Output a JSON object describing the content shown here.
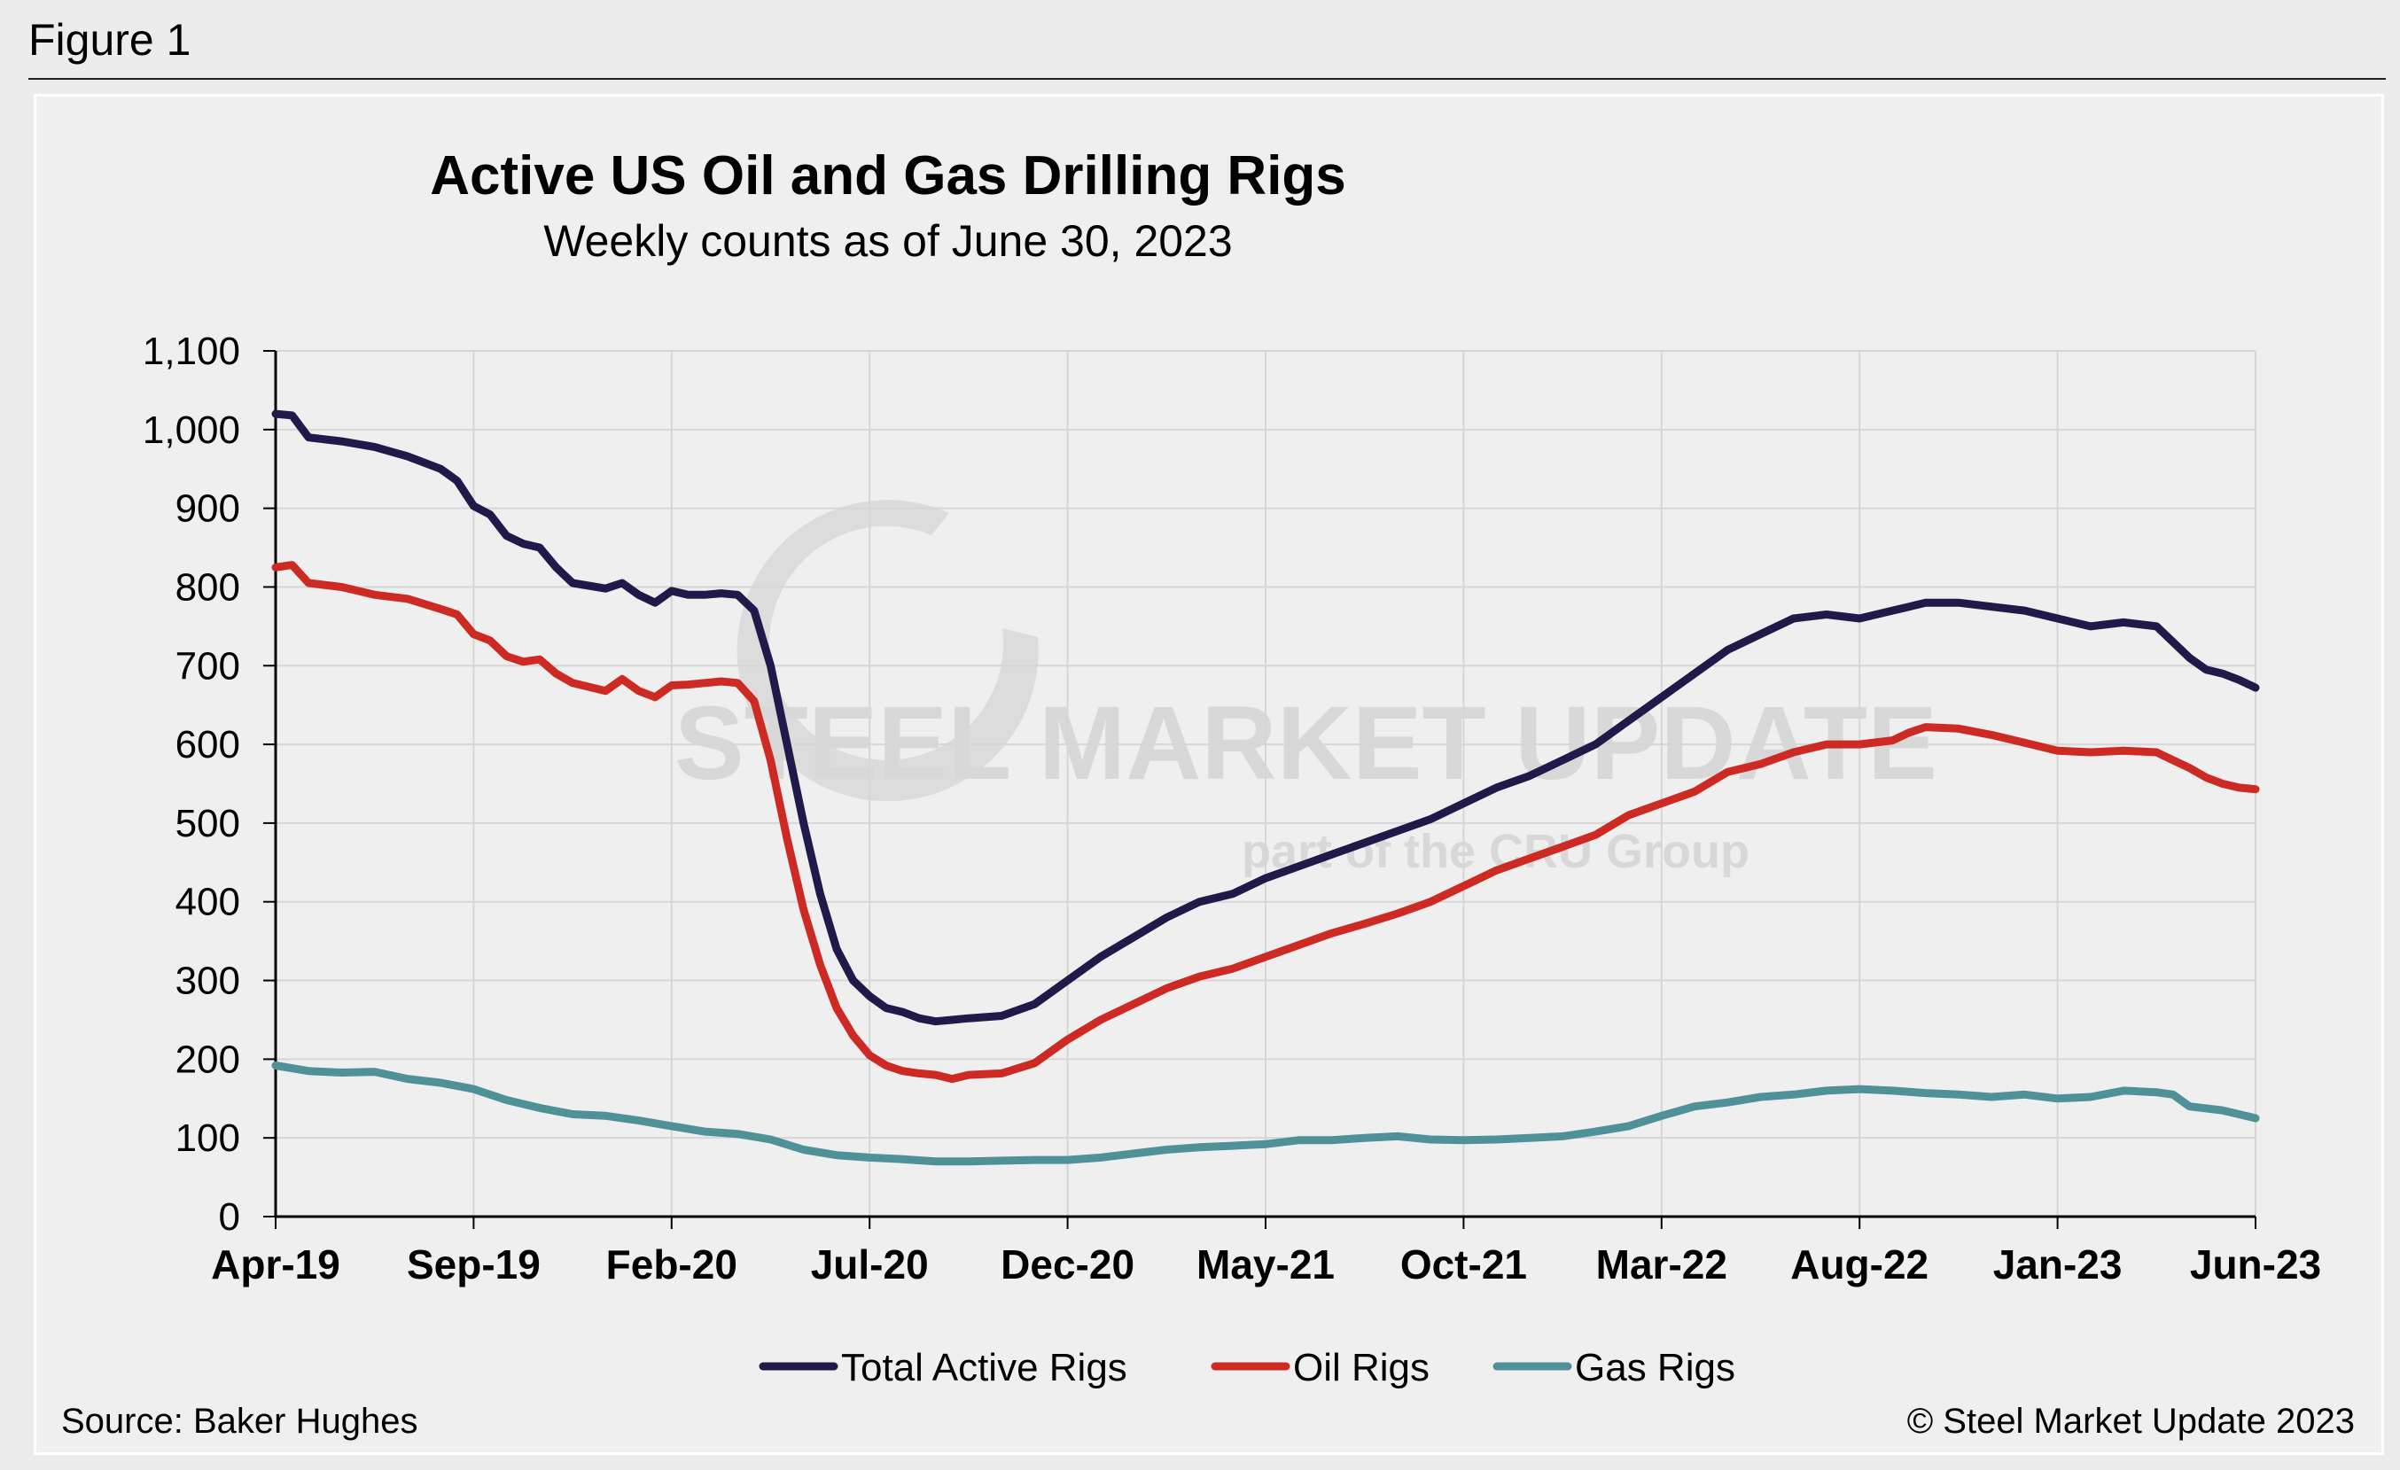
{
  "figure_label": "Figure 1",
  "source": "Source: Baker Hughes",
  "copyright": "© Steel Market Update 2023",
  "watermark": {
    "main": "STEEL MARKET UPDATE",
    "sub": "part of the CRU Group"
  },
  "colors": {
    "total": "#1f1a4a",
    "oil": "#cc2a23",
    "gas": "#4f9099"
  },
  "chart_data": {
    "type": "line",
    "title": "Active US Oil and Gas Drilling Rigs",
    "subtitle": "Weekly counts as of June 30, 2023",
    "xlabel": "",
    "ylabel": "",
    "ylim": [
      0,
      1100
    ],
    "y_ticks": [
      0,
      100,
      200,
      300,
      400,
      500,
      600,
      700,
      800,
      900,
      1000,
      1100
    ],
    "y_tick_labels": [
      "0",
      "100",
      "200",
      "300",
      "400",
      "500",
      "600",
      "700",
      "800",
      "900",
      "1,000",
      "1,100"
    ],
    "x_tick_labels": [
      "Apr-19",
      "Sep-19",
      "Feb-20",
      "Jul-20",
      "Dec-20",
      "May-21",
      "Oct-21",
      "Mar-22",
      "Aug-22",
      "Jan-23",
      "Jun-23"
    ],
    "x_range_months": [
      0,
      51
    ],
    "grid": true,
    "legend_position": "bottom",
    "series": [
      {
        "name": "Total Active Rigs",
        "color_key": "total",
        "points": [
          [
            0,
            1020
          ],
          [
            0.5,
            1018
          ],
          [
            1,
            990
          ],
          [
            2,
            985
          ],
          [
            3,
            978
          ],
          [
            4,
            966
          ],
          [
            5,
            950
          ],
          [
            5.5,
            935
          ],
          [
            6,
            903
          ],
          [
            6.5,
            892
          ],
          [
            7,
            865
          ],
          [
            7.5,
            855
          ],
          [
            8,
            850
          ],
          [
            8.5,
            825
          ],
          [
            9,
            805
          ],
          [
            10,
            798
          ],
          [
            10.5,
            805
          ],
          [
            11,
            790
          ],
          [
            11.5,
            780
          ],
          [
            12,
            795
          ],
          [
            12.5,
            790
          ],
          [
            13,
            790
          ],
          [
            13.5,
            792
          ],
          [
            14,
            790
          ],
          [
            14.5,
            770
          ],
          [
            15,
            700
          ],
          [
            15.5,
            600
          ],
          [
            16,
            500
          ],
          [
            16.5,
            410
          ],
          [
            17,
            340
          ],
          [
            17.5,
            300
          ],
          [
            18,
            280
          ],
          [
            18.5,
            265
          ],
          [
            19,
            260
          ],
          [
            19.5,
            252
          ],
          [
            20,
            248
          ],
          [
            20.5,
            250
          ],
          [
            21,
            252
          ],
          [
            22,
            255
          ],
          [
            23,
            270
          ],
          [
            24,
            300
          ],
          [
            25,
            330
          ],
          [
            26,
            355
          ],
          [
            27,
            380
          ],
          [
            28,
            400
          ],
          [
            29,
            410
          ],
          [
            30,
            430
          ],
          [
            31,
            445
          ],
          [
            32,
            460
          ],
          [
            33,
            475
          ],
          [
            34,
            490
          ],
          [
            35,
            505
          ],
          [
            36,
            525
          ],
          [
            37,
            545
          ],
          [
            38,
            560
          ],
          [
            39,
            580
          ],
          [
            40,
            600
          ],
          [
            41,
            630
          ],
          [
            42,
            660
          ],
          [
            43,
            690
          ],
          [
            44,
            720
          ],
          [
            45,
            740
          ],
          [
            46,
            760
          ],
          [
            47,
            765
          ],
          [
            48,
            760
          ],
          [
            49,
            770
          ],
          [
            49.5,
            775
          ],
          [
            50,
            780
          ],
          [
            51,
            780
          ],
          [
            52,
            775
          ],
          [
            53,
            770
          ],
          [
            54,
            760
          ],
          [
            55,
            750
          ],
          [
            56,
            755
          ],
          [
            57,
            750
          ],
          [
            57.5,
            730
          ],
          [
            58,
            710
          ],
          [
            58.5,
            695
          ],
          [
            59,
            690
          ],
          [
            59.5,
            682
          ],
          [
            60,
            672
          ]
        ]
      },
      {
        "name": "Oil Rigs",
        "color_key": "oil",
        "points": [
          [
            0,
            825
          ],
          [
            0.5,
            828
          ],
          [
            1,
            805
          ],
          [
            2,
            800
          ],
          [
            3,
            790
          ],
          [
            4,
            785
          ],
          [
            5,
            772
          ],
          [
            5.5,
            765
          ],
          [
            6,
            740
          ],
          [
            6.5,
            732
          ],
          [
            7,
            712
          ],
          [
            7.5,
            705
          ],
          [
            8,
            708
          ],
          [
            8.5,
            690
          ],
          [
            9,
            678
          ],
          [
            10,
            668
          ],
          [
            10.5,
            683
          ],
          [
            11,
            668
          ],
          [
            11.5,
            660
          ],
          [
            12,
            675
          ],
          [
            12.5,
            676
          ],
          [
            13,
            678
          ],
          [
            13.5,
            680
          ],
          [
            14,
            678
          ],
          [
            14.5,
            655
          ],
          [
            15,
            580
          ],
          [
            15.5,
            480
          ],
          [
            16,
            390
          ],
          [
            16.5,
            320
          ],
          [
            17,
            265
          ],
          [
            17.5,
            230
          ],
          [
            18,
            205
          ],
          [
            18.5,
            192
          ],
          [
            19,
            185
          ],
          [
            19.5,
            182
          ],
          [
            20,
            180
          ],
          [
            20.5,
            175
          ],
          [
            21,
            180
          ],
          [
            22,
            182
          ],
          [
            23,
            195
          ],
          [
            24,
            225
          ],
          [
            25,
            250
          ],
          [
            26,
            270
          ],
          [
            27,
            290
          ],
          [
            28,
            305
          ],
          [
            29,
            315
          ],
          [
            30,
            330
          ],
          [
            31,
            345
          ],
          [
            32,
            360
          ],
          [
            33,
            372
          ],
          [
            34,
            385
          ],
          [
            35,
            400
          ],
          [
            36,
            420
          ],
          [
            37,
            440
          ],
          [
            38,
            455
          ],
          [
            39,
            470
          ],
          [
            40,
            485
          ],
          [
            41,
            510
          ],
          [
            42,
            525
          ],
          [
            43,
            540
          ],
          [
            44,
            565
          ],
          [
            45,
            575
          ],
          [
            46,
            590
          ],
          [
            47,
            600
          ],
          [
            48,
            600
          ],
          [
            49,
            605
          ],
          [
            49.5,
            615
          ],
          [
            50,
            622
          ],
          [
            51,
            620
          ],
          [
            52,
            612
          ],
          [
            53,
            602
          ],
          [
            54,
            592
          ],
          [
            55,
            590
          ],
          [
            56,
            592
          ],
          [
            57,
            590
          ],
          [
            57.5,
            580
          ],
          [
            58,
            570
          ],
          [
            58.5,
            558
          ],
          [
            59,
            550
          ],
          [
            59.5,
            545
          ],
          [
            60,
            543
          ]
        ]
      },
      {
        "name": "Gas Rigs",
        "color_key": "gas",
        "points": [
          [
            0,
            192
          ],
          [
            1,
            185
          ],
          [
            2,
            183
          ],
          [
            3,
            184
          ],
          [
            4,
            175
          ],
          [
            5,
            170
          ],
          [
            6,
            162
          ],
          [
            7,
            148
          ],
          [
            8,
            138
          ],
          [
            9,
            130
          ],
          [
            10,
            128
          ],
          [
            11,
            122
          ],
          [
            12,
            115
          ],
          [
            13,
            108
          ],
          [
            14,
            105
          ],
          [
            15,
            98
          ],
          [
            16,
            85
          ],
          [
            17,
            78
          ],
          [
            18,
            75
          ],
          [
            19,
            73
          ],
          [
            20,
            70
          ],
          [
            21,
            70
          ],
          [
            22,
            71
          ],
          [
            23,
            72
          ],
          [
            24,
            72
          ],
          [
            25,
            75
          ],
          [
            26,
            80
          ],
          [
            27,
            85
          ],
          [
            28,
            88
          ],
          [
            29,
            90
          ],
          [
            30,
            92
          ],
          [
            31,
            97
          ],
          [
            32,
            97
          ],
          [
            33,
            100
          ],
          [
            34,
            102
          ],
          [
            35,
            98
          ],
          [
            36,
            97
          ],
          [
            37,
            98
          ],
          [
            38,
            100
          ],
          [
            39,
            102
          ],
          [
            40,
            108
          ],
          [
            41,
            115
          ],
          [
            42,
            128
          ],
          [
            43,
            140
          ],
          [
            44,
            145
          ],
          [
            45,
            152
          ],
          [
            46,
            155
          ],
          [
            47,
            160
          ],
          [
            48,
            162
          ],
          [
            49,
            160
          ],
          [
            50,
            157
          ],
          [
            51,
            155
          ],
          [
            52,
            152
          ],
          [
            53,
            155
          ],
          [
            54,
            150
          ],
          [
            55,
            152
          ],
          [
            56,
            160
          ],
          [
            57,
            158
          ],
          [
            57.5,
            155
          ],
          [
            58,
            140
          ],
          [
            59,
            135
          ],
          [
            60,
            125
          ]
        ]
      }
    ]
  }
}
